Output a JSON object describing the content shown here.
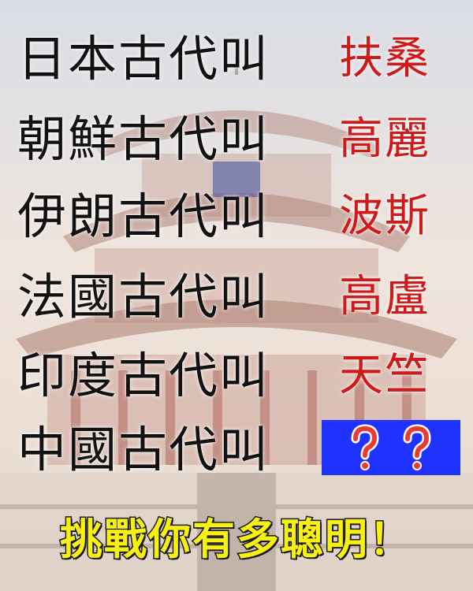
{
  "rows": [
    {
      "left": "日本古代叫",
      "right": "扶桑"
    },
    {
      "left": "朝鮮古代叫",
      "right": "高麗"
    },
    {
      "left": "伊朗古代叫",
      "right": "波斯"
    },
    {
      "left": "法國古代叫",
      "right": "高盧"
    },
    {
      "left": "印度古代叫",
      "right": "天竺"
    },
    {
      "left": "中國古代叫",
      "right": ""
    }
  ],
  "question_marks": "??",
  "footer": "挑戰你有多聰明！",
  "colors": {
    "left_text": "#111111",
    "right_text": "#d01a1a",
    "answer_box": "#1f32ff",
    "question_mark": "#e83a3a",
    "footer_fill": "#f7f010"
  }
}
